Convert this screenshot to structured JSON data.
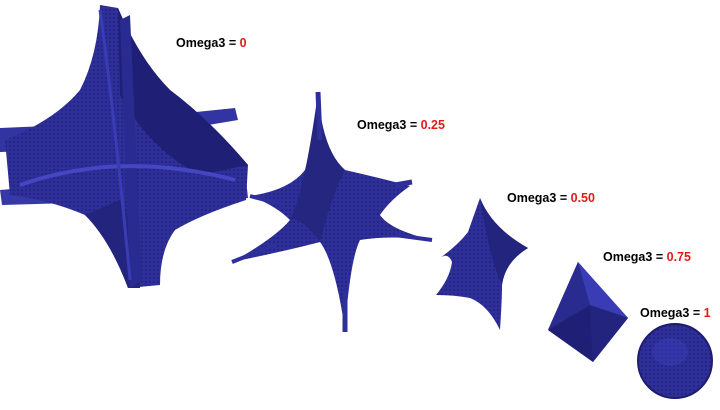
{
  "colors": {
    "solid": "#2e2f9a",
    "solid_dark": "#1c1d6e",
    "solid_light": "#3d3fb8",
    "label_text": "#000000",
    "value_text": "#e01b1b"
  },
  "shapes": [
    {
      "label": "Omega3",
      "equals": "=",
      "value": "0"
    },
    {
      "label": "Omega3",
      "equals": "=",
      "value": "0.25"
    },
    {
      "label": "Omega3",
      "equals": "=",
      "value": "0.50"
    },
    {
      "label": "Omega3",
      "equals": "=",
      "value": "0.75"
    },
    {
      "label": "Omega3",
      "equals": "=",
      "value": "1"
    }
  ]
}
